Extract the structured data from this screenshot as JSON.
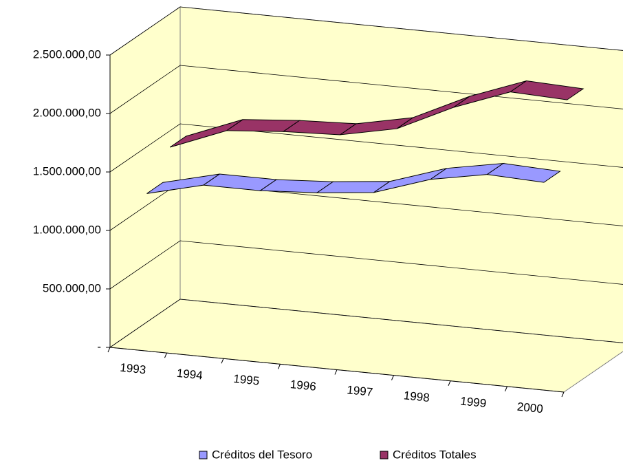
{
  "chart_data": {
    "type": "line3d",
    "categories": [
      "1993",
      "1994",
      "1995",
      "1996",
      "1997",
      "1998",
      "1999",
      "2000"
    ],
    "series": [
      {
        "name": "Créditos del Tesoro",
        "color": "#9999ff",
        "values": [
          1290000,
          1410000,
          1410000,
          1440000,
          1490000,
          1650000,
          1740000,
          1720000
        ]
      },
      {
        "name": "Créditos Totales",
        "color": "#993366",
        "values": [
          1550000,
          1740000,
          1780000,
          1800000,
          1900000,
          2130000,
          2310000,
          2290000
        ]
      }
    ],
    "ylim": [
      0,
      2500000
    ],
    "yticks": [
      {
        "value": 0,
        "label": "-"
      },
      {
        "value": 500000,
        "label": "500.000,00"
      },
      {
        "value": 1000000,
        "label": "1.000.000,00"
      },
      {
        "value": 1500000,
        "label": "1.500.000,00"
      },
      {
        "value": 2000000,
        "label": "2.000.000,00"
      },
      {
        "value": 2500000,
        "label": "2.500.000,00"
      }
    ],
    "grid": true,
    "legend": "bottom",
    "wall_color": "#ffffcc"
  }
}
